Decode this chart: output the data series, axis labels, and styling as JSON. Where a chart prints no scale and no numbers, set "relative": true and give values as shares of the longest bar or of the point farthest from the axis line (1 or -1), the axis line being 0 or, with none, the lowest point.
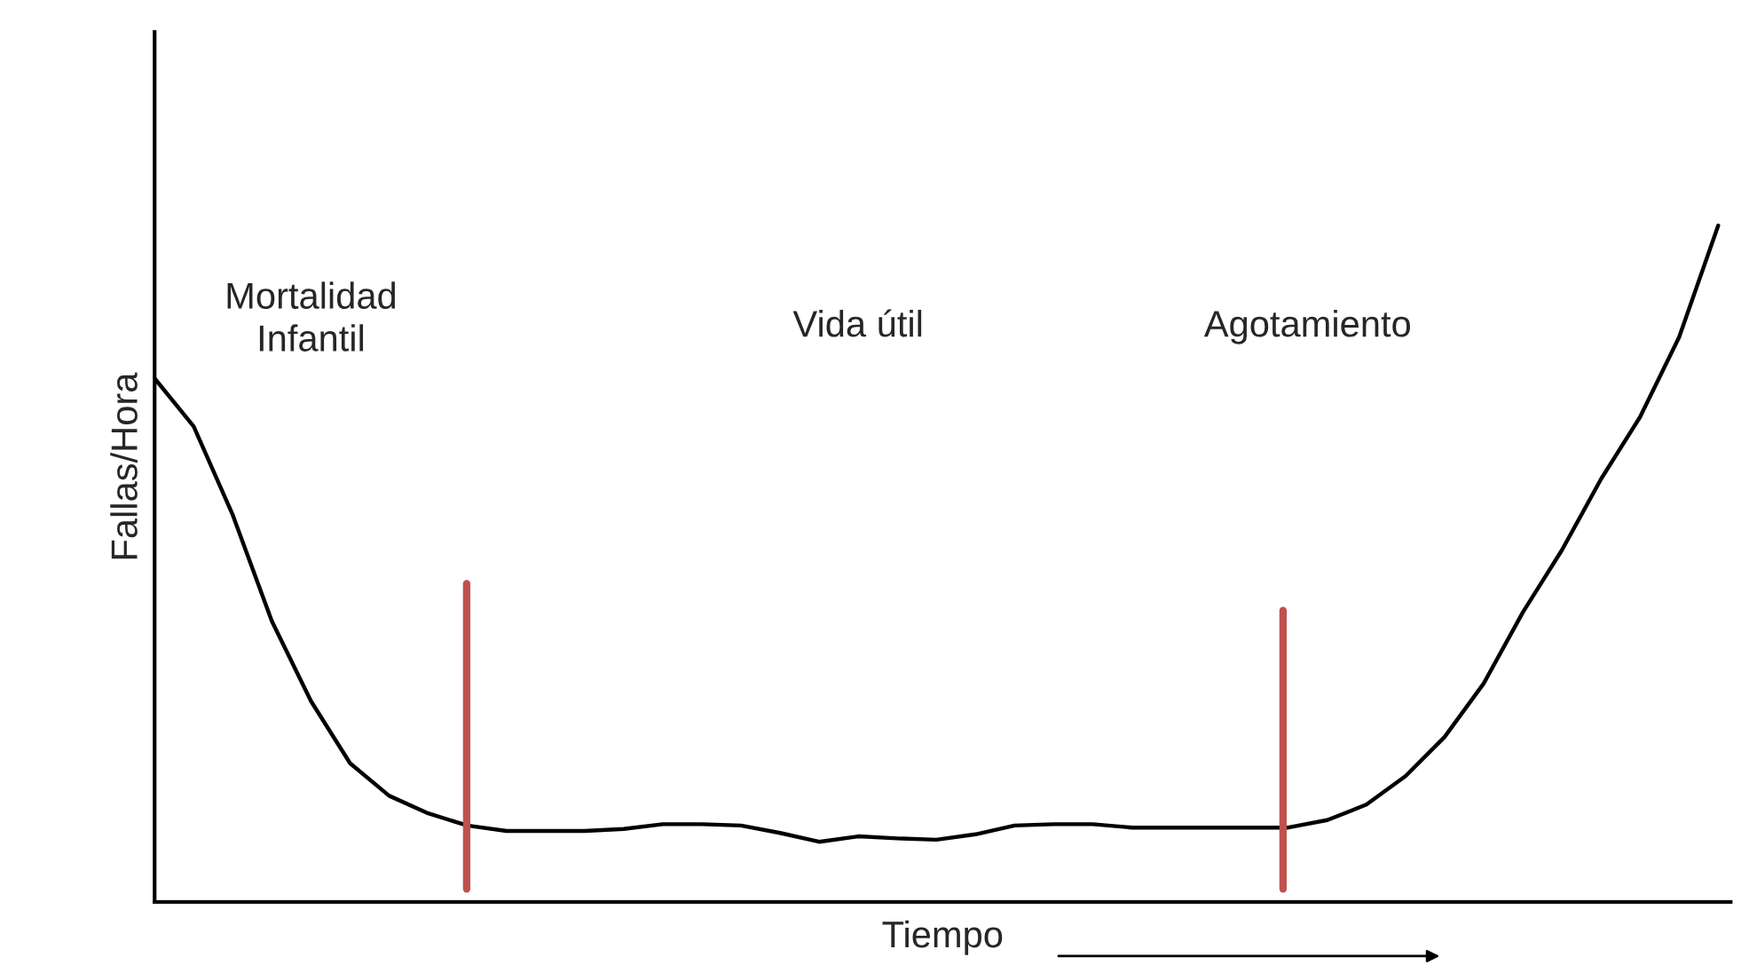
{
  "chart_data": {
    "type": "line",
    "relative": true,
    "xlabel": "Tiempo",
    "ylabel": "Fallas/Hora",
    "categories": [
      null,
      null,
      null,
      null,
      null,
      null,
      null,
      null,
      null,
      null,
      null,
      null,
      null,
      null,
      null,
      null,
      null,
      null,
      null,
      null,
      null,
      null,
      null,
      null,
      null,
      null,
      null,
      null,
      null,
      null,
      null,
      null,
      null,
      null,
      null,
      null,
      null,
      null,
      null,
      null,
      null
    ],
    "series": [
      {
        "color": "#000000",
        "values": [
          0.774,
          0.703,
          0.572,
          0.415,
          0.297,
          0.205,
          0.157,
          0.131,
          0.113,
          0.105,
          0.105,
          0.105,
          0.108,
          0.115,
          0.115,
          0.113,
          0.102,
          0.089,
          0.097,
          0.094,
          0.092,
          0.1,
          0.113,
          0.115,
          0.115,
          0.11,
          0.11,
          0.11,
          0.11,
          0.11,
          0.121,
          0.144,
          0.186,
          0.244,
          0.323,
          0.428,
          0.52,
          0.625,
          0.717,
          0.835,
          1.0
        ]
      }
    ],
    "annotations": [
      "Mortalidad\nInfantil",
      "Vida útil",
      "Agotamiento"
    ],
    "marker": "none",
    "line_style": "solid",
    "grid": false,
    "legend": false
  }
}
